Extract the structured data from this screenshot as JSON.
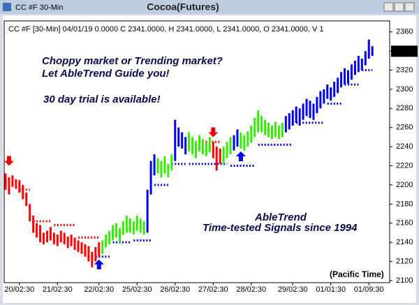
{
  "chart_data": {
    "type": "price-bars",
    "window_title": "CC #F 30-Min",
    "title": "Cocoa(Futures)",
    "header": "CC #F [30-Min] 04/01/19  0.0000 C 2341.0000, H 2341.0000, L 2341.0000, O 2341.0000, V 1",
    "annotations": [
      "Choppy market or Trending market?",
      "Let AbleTrend Guide you!",
      "30 day trial is available!",
      "AbleTrend",
      "Time-tested Signals since 1994"
    ],
    "x_axis_note": "(Pacific Time)",
    "xlim": [
      0,
      110
    ],
    "xticks": [
      {
        "value": 4,
        "label": "20/02:30"
      },
      {
        "value": 15,
        "label": "21/02:30"
      },
      {
        "value": 27,
        "label": "22/02:30"
      },
      {
        "value": 38,
        "label": "25/02:30"
      },
      {
        "value": 49,
        "label": "26/02:30"
      },
      {
        "value": 60,
        "label": "27/02:30"
      },
      {
        "value": 71,
        "label": "28/02:30"
      },
      {
        "value": 83,
        "label": "29/02:30"
      },
      {
        "value": 94,
        "label": "01/01:30"
      },
      {
        "value": 105,
        "label": "01/09:30"
      }
    ],
    "ylim": [
      2100,
      2370
    ],
    "yticks": [
      2100,
      2120,
      2140,
      2160,
      2180,
      2200,
      2220,
      2240,
      2260,
      2280,
      2300,
      2320,
      2340,
      2360
    ],
    "last_price": 2339.8,
    "series": [
      {
        "color": "#ff0000",
        "x": [
          0,
          1,
          2,
          3,
          4,
          5,
          6,
          7,
          8,
          9,
          10,
          11,
          12,
          13,
          14,
          15,
          16,
          17,
          18,
          19,
          20,
          21,
          22,
          23,
          24,
          25,
          26,
          27,
          60,
          61,
          62
        ],
        "high": [
          2212,
          2208,
          2210,
          2206,
          2205,
          2200,
          2192,
          2180,
          2168,
          2160,
          2158,
          2150,
          2152,
          2156,
          2150,
          2148,
          2152,
          2150,
          2146,
          2148,
          2145,
          2142,
          2140,
          2138,
          2136,
          2130,
          2135,
          2140,
          2245,
          2240,
          2238
        ],
        "low": [
          2195,
          2190,
          2198,
          2196,
          2192,
          2185,
          2178,
          2162,
          2150,
          2145,
          2140,
          2138,
          2140,
          2142,
          2138,
          2136,
          2140,
          2138,
          2134,
          2136,
          2132,
          2130,
          2128,
          2125,
          2120,
          2114,
          2120,
          2125,
          2228,
          2215,
          2222
        ]
      },
      {
        "color": "#33ee00",
        "x": [
          28,
          29,
          30,
          31,
          32,
          33,
          34,
          35,
          36,
          37,
          38,
          39,
          40,
          44,
          45,
          46,
          47,
          48,
          53,
          54,
          55,
          56,
          57,
          58,
          59,
          63,
          64,
          65,
          68,
          69,
          70,
          71,
          72,
          73,
          74,
          75,
          76,
          77,
          78,
          79,
          80
        ],
        "high": [
          2142,
          2148,
          2152,
          2158,
          2160,
          2155,
          2162,
          2168,
          2165,
          2162,
          2168,
          2165,
          2162,
          2228,
          2225,
          2230,
          2222,
          2232,
          2255,
          2250,
          2246,
          2252,
          2248,
          2244,
          2250,
          2240,
          2245,
          2250,
          2255,
          2252,
          2256,
          2262,
          2270,
          2278,
          2272,
          2268,
          2265,
          2262,
          2266,
          2262,
          2265
        ],
        "low": [
          2128,
          2135,
          2138,
          2142,
          2145,
          2140,
          2148,
          2150,
          2150,
          2148,
          2152,
          2150,
          2148,
          2212,
          2208,
          2212,
          2208,
          2215,
          2235,
          2232,
          2228,
          2235,
          2232,
          2230,
          2234,
          2222,
          2228,
          2232,
          2238,
          2236,
          2240,
          2244,
          2250,
          2255,
          2255,
          2252,
          2250,
          2248,
          2250,
          2248,
          2250
        ]
      },
      {
        "color": "#0000ee",
        "x": [
          41,
          42,
          43,
          49,
          50,
          51,
          52,
          66,
          67,
          81,
          82,
          83,
          84,
          85,
          86,
          87,
          88,
          89,
          90,
          91,
          92,
          93,
          94,
          95,
          96,
          97,
          98,
          99,
          100,
          101,
          102,
          103,
          104,
          105,
          106
        ],
        "high": [
          2195,
          2225,
          2232,
          2268,
          2260,
          2255,
          2250,
          2252,
          2258,
          2272,
          2275,
          2278,
          2282,
          2280,
          2285,
          2290,
          2288,
          2285,
          2292,
          2298,
          2300,
          2305,
          2302,
          2308,
          2312,
          2318,
          2322,
          2320,
          2326,
          2330,
          2335,
          2332,
          2340,
          2352,
          2345
        ],
        "low": [
          2150,
          2190,
          2210,
          2225,
          2240,
          2238,
          2232,
          2236,
          2240,
          2255,
          2258,
          2262,
          2265,
          2262,
          2268,
          2272,
          2270,
          2268,
          2275,
          2280,
          2285,
          2290,
          2288,
          2292,
          2296,
          2302,
          2305,
          2306,
          2310,
          2315,
          2318,
          2320,
          2325,
          2332,
          2335
        ]
      }
    ],
    "stop_lines": [
      {
        "color": "#ff0000",
        "from": [
          4,
          8,
          14,
          21,
          56
        ],
        "to": [
          7,
          13,
          20,
          27,
          62
        ],
        "levels": [
          2195,
          2162,
          2158,
          2145,
          2245
        ]
      },
      {
        "color": "#0000ee",
        "from": [
          26,
          31,
          37,
          43,
          48,
          53,
          65,
          73,
          84,
          93,
          98,
          103
        ],
        "to": [
          30,
          36,
          42,
          47,
          52,
          64,
          72,
          83,
          92,
          97,
          102,
          106
        ],
        "levels": [
          2125,
          2140,
          2142,
          2200,
          2222,
          2222,
          2220,
          2242,
          2265,
          2285,
          2305,
          2320
        ]
      }
    ],
    "signals": {
      "x": [
        1,
        27,
        60,
        68
      ],
      "y": [
        2220,
        2122,
        2250,
        2235
      ],
      "direction": [
        "down",
        "up",
        "down",
        "up"
      ],
      "colors": [
        "#ee0000",
        "#0000ee",
        "#ee0000",
        "#0000ee"
      ]
    }
  }
}
